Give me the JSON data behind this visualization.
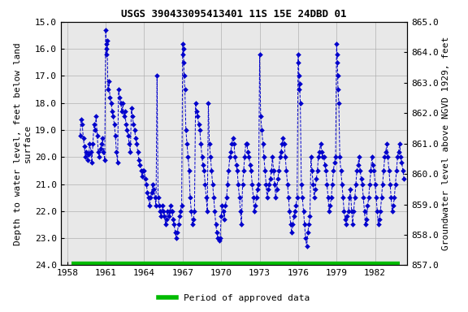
{
  "title": "USGS 390433095413401 11S 15E 24DBD 01",
  "ylabel_left": "Depth to water level, feet below land\nsurface",
  "ylabel_right": "Groundwater level above NGVD 1929, feet",
  "xlim": [
    1957.5,
    1984.5
  ],
  "ylim_left": [
    24.0,
    15.0
  ],
  "ylim_right": [
    857.0,
    865.0
  ],
  "xticks": [
    1958,
    1961,
    1964,
    1967,
    1970,
    1973,
    1976,
    1979,
    1982
  ],
  "yticks_left": [
    15.0,
    16.0,
    17.0,
    18.0,
    19.0,
    20.0,
    21.0,
    22.0,
    23.0,
    24.0
  ],
  "yticks_right": [
    857.0,
    858.0,
    859.0,
    860.0,
    861.0,
    862.0,
    863.0,
    864.0,
    865.0
  ],
  "line_color": "#0000CC",
  "marker_color": "#0000CC",
  "background_color": "#ffffff",
  "plot_bg_color": "#e8e8e8",
  "title_fontsize": 9,
  "axis_fontsize": 8,
  "tick_fontsize": 8,
  "legend_color": "#00BB00",
  "legend_label": "Period of approved data",
  "green_bar_color": "#00BB00",
  "green_bar_linewidth": 6,
  "data_x": [
    1959.0,
    1959.08,
    1959.17,
    1959.25,
    1959.33,
    1959.42,
    1959.5,
    1959.58,
    1959.67,
    1959.75,
    1959.83,
    1959.92,
    1960.0,
    1960.08,
    1960.17,
    1960.25,
    1960.33,
    1960.42,
    1960.5,
    1960.58,
    1960.67,
    1960.75,
    1960.83,
    1960.92,
    1961.0,
    1961.03,
    1961.06,
    1961.08,
    1961.11,
    1961.17,
    1961.25,
    1961.33,
    1961.42,
    1961.5,
    1961.58,
    1961.67,
    1961.75,
    1961.83,
    1961.92,
    1962.0,
    1962.08,
    1962.17,
    1962.25,
    1962.33,
    1962.42,
    1962.5,
    1962.58,
    1962.67,
    1962.75,
    1962.83,
    1962.92,
    1963.0,
    1963.08,
    1963.17,
    1963.25,
    1963.33,
    1963.42,
    1963.5,
    1963.58,
    1963.67,
    1963.75,
    1963.83,
    1963.92,
    1964.0,
    1964.08,
    1964.17,
    1964.25,
    1964.33,
    1964.42,
    1964.5,
    1964.58,
    1964.67,
    1964.75,
    1964.83,
    1964.92,
    1965.0,
    1965.08,
    1965.17,
    1965.25,
    1965.33,
    1965.42,
    1965.5,
    1965.58,
    1965.67,
    1965.75,
    1965.83,
    1965.92,
    1966.0,
    1966.08,
    1966.17,
    1966.25,
    1966.33,
    1966.42,
    1966.5,
    1966.58,
    1966.67,
    1966.75,
    1966.83,
    1966.92,
    1967.0,
    1967.03,
    1967.06,
    1967.08,
    1967.11,
    1967.17,
    1967.25,
    1967.33,
    1967.42,
    1967.5,
    1967.58,
    1967.67,
    1967.75,
    1967.83,
    1967.92,
    1968.0,
    1968.08,
    1968.17,
    1968.25,
    1968.33,
    1968.42,
    1968.5,
    1968.58,
    1968.67,
    1968.75,
    1968.83,
    1968.92,
    1969.0,
    1969.08,
    1969.17,
    1969.25,
    1969.33,
    1969.42,
    1969.5,
    1969.58,
    1969.67,
    1969.75,
    1969.83,
    1969.92,
    1970.0,
    1970.08,
    1970.17,
    1970.25,
    1970.33,
    1970.42,
    1970.5,
    1970.58,
    1970.67,
    1970.75,
    1970.83,
    1970.92,
    1971.0,
    1971.08,
    1971.17,
    1971.25,
    1971.33,
    1971.42,
    1971.5,
    1971.58,
    1971.67,
    1971.75,
    1971.83,
    1971.92,
    1972.0,
    1972.08,
    1972.17,
    1972.25,
    1972.33,
    1972.42,
    1972.5,
    1972.58,
    1972.67,
    1972.75,
    1972.83,
    1972.92,
    1973.0,
    1973.08,
    1973.17,
    1973.25,
    1973.33,
    1973.42,
    1973.5,
    1973.58,
    1973.67,
    1973.75,
    1973.83,
    1973.92,
    1974.0,
    1974.08,
    1974.17,
    1974.25,
    1974.33,
    1974.42,
    1974.5,
    1974.58,
    1974.67,
    1974.75,
    1974.83,
    1974.92,
    1975.0,
    1975.08,
    1975.17,
    1975.25,
    1975.33,
    1975.42,
    1975.5,
    1975.58,
    1975.67,
    1975.75,
    1975.83,
    1975.92,
    1976.0,
    1976.03,
    1976.06,
    1976.08,
    1976.11,
    1976.17,
    1976.25,
    1976.33,
    1976.42,
    1976.5,
    1976.58,
    1976.67,
    1976.75,
    1976.83,
    1976.92,
    1977.0,
    1977.08,
    1977.17,
    1977.25,
    1977.33,
    1977.42,
    1977.5,
    1977.58,
    1977.67,
    1977.75,
    1977.83,
    1977.92,
    1978.0,
    1978.08,
    1978.17,
    1978.25,
    1978.33,
    1978.42,
    1978.5,
    1978.58,
    1978.67,
    1978.75,
    1978.83,
    1978.92,
    1979.0,
    1979.03,
    1979.06,
    1979.08,
    1979.11,
    1979.17,
    1979.25,
    1979.33,
    1979.42,
    1979.5,
    1979.58,
    1979.67,
    1979.75,
    1979.83,
    1979.92,
    1980.0,
    1980.08,
    1980.17,
    1980.25,
    1980.33,
    1980.42,
    1980.5,
    1980.58,
    1980.67,
    1980.75,
    1980.83,
    1980.92,
    1981.0,
    1981.08,
    1981.17,
    1981.25,
    1981.33,
    1981.42,
    1981.5,
    1981.58,
    1981.67,
    1981.75,
    1981.83,
    1981.92,
    1982.0,
    1982.08,
    1982.17,
    1982.25,
    1982.33,
    1982.42,
    1982.5,
    1982.58,
    1982.67,
    1982.75,
    1982.83,
    1982.92,
    1983.0,
    1983.08,
    1983.17,
    1983.25,
    1983.33,
    1983.42,
    1983.5,
    1983.58,
    1983.67,
    1983.75,
    1983.83,
    1983.92,
    1984.0,
    1984.08,
    1984.17,
    1984.25
  ],
  "data_y": [
    19.2,
    18.6,
    18.8,
    19.3,
    19.6,
    20.0,
    19.8,
    20.1,
    19.9,
    19.5,
    19.8,
    20.2,
    19.5,
    18.8,
    19.0,
    18.5,
    19.2,
    19.8,
    20.0,
    19.7,
    19.5,
    19.3,
    19.8,
    20.1,
    15.3,
    15.8,
    16.2,
    16.0,
    15.7,
    17.5,
    17.2,
    17.8,
    18.0,
    18.3,
    18.5,
    18.8,
    19.2,
    19.8,
    20.2,
    17.5,
    17.8,
    18.0,
    18.3,
    18.0,
    18.5,
    18.3,
    18.8,
    19.0,
    19.2,
    19.5,
    19.8,
    18.2,
    18.5,
    18.8,
    19.0,
    19.3,
    19.5,
    19.8,
    20.1,
    20.3,
    20.5,
    20.7,
    20.5,
    20.5,
    20.8,
    21.0,
    21.3,
    21.5,
    21.8,
    21.5,
    21.3,
    21.0,
    21.2,
    21.5,
    21.8,
    17.0,
    21.5,
    21.8,
    22.0,
    22.2,
    21.8,
    22.0,
    22.2,
    22.5,
    22.3,
    22.0,
    22.2,
    22.0,
    21.8,
    22.0,
    22.3,
    22.5,
    22.8,
    23.0,
    22.8,
    22.5,
    22.2,
    22.0,
    21.8,
    15.8,
    16.2,
    16.0,
    16.5,
    17.0,
    17.5,
    19.0,
    19.5,
    20.0,
    20.5,
    21.5,
    22.0,
    22.5,
    22.3,
    22.0,
    18.0,
    18.3,
    18.5,
    18.8,
    19.0,
    19.5,
    20.0,
    20.3,
    20.5,
    21.0,
    21.5,
    22.0,
    18.0,
    19.5,
    20.0,
    20.5,
    21.0,
    21.5,
    22.0,
    22.5,
    22.8,
    23.0,
    23.1,
    23.0,
    22.2,
    21.8,
    22.0,
    22.3,
    21.8,
    21.5,
    21.0,
    20.5,
    20.0,
    19.8,
    19.5,
    19.3,
    19.5,
    20.0,
    20.3,
    20.5,
    21.0,
    21.5,
    22.0,
    22.5,
    21.0,
    20.5,
    20.0,
    19.5,
    19.5,
    19.8,
    20.0,
    20.3,
    20.5,
    21.0,
    21.5,
    22.0,
    21.8,
    21.5,
    21.2,
    21.0,
    16.2,
    18.5,
    19.0,
    19.5,
    20.0,
    20.5,
    21.0,
    21.5,
    21.2,
    21.0,
    20.8,
    20.5,
    20.0,
    20.5,
    21.0,
    21.5,
    21.2,
    20.8,
    20.5,
    20.0,
    19.8,
    19.5,
    19.3,
    19.5,
    20.0,
    20.5,
    21.0,
    21.5,
    22.0,
    22.5,
    22.8,
    22.5,
    22.2,
    22.0,
    21.8,
    21.5,
    16.2,
    16.5,
    17.0,
    17.5,
    17.3,
    18.0,
    21.0,
    21.5,
    22.0,
    22.5,
    23.0,
    23.3,
    22.8,
    22.5,
    22.2,
    20.0,
    20.5,
    21.0,
    21.5,
    21.2,
    20.8,
    20.5,
    20.0,
    19.8,
    19.5,
    19.8,
    20.0,
    20.0,
    20.3,
    20.5,
    21.0,
    21.5,
    22.0,
    21.8,
    21.5,
    21.0,
    20.5,
    20.2,
    20.0,
    15.8,
    16.2,
    16.5,
    17.0,
    17.5,
    18.0,
    20.0,
    20.5,
    21.0,
    21.5,
    22.0,
    22.3,
    22.5,
    22.2,
    22.0,
    21.5,
    21.2,
    22.0,
    22.5,
    22.0,
    21.5,
    21.0,
    20.5,
    20.3,
    20.0,
    20.5,
    20.8,
    21.0,
    21.5,
    22.0,
    22.5,
    22.3,
    21.8,
    21.5,
    21.0,
    20.5,
    20.0,
    20.3,
    20.5,
    21.0,
    21.5,
    22.0,
    22.5,
    22.3,
    22.0,
    21.5,
    21.0,
    20.5,
    20.0,
    19.8,
    19.5,
    20.0,
    20.5,
    21.0,
    21.5,
    22.0,
    21.8,
    21.5,
    21.0,
    20.5,
    20.0,
    19.8,
    19.5,
    20.0,
    20.2,
    20.5,
    20.8
  ]
}
